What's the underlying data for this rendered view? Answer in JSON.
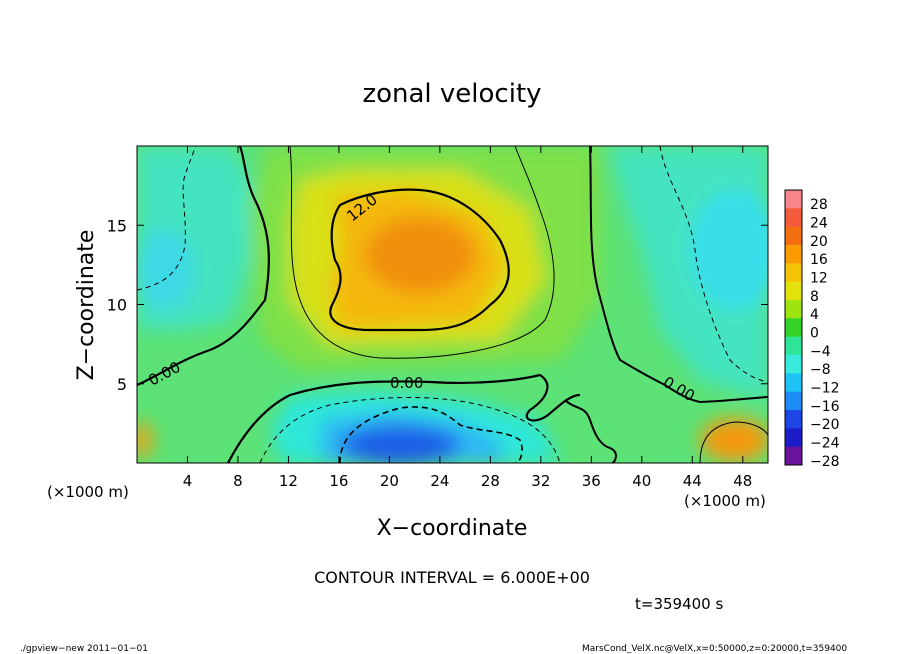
{
  "chart_data": {
    "type": "heatmap",
    "title": "zonal velocity",
    "xlabel": "X−coordinate",
    "ylabel": "Z−coordinate",
    "x_unit": "(×1000 m)",
    "y_unit": "(×1000 m)",
    "xlim": [
      0,
      50
    ],
    "ylim": [
      0,
      20
    ],
    "x_ticks": [
      "4",
      "8",
      "12",
      "16",
      "20",
      "24",
      "28",
      "32",
      "36",
      "40",
      "44",
      "48"
    ],
    "x_tick_values": [
      4,
      8,
      12,
      16,
      20,
      24,
      28,
      32,
      36,
      40,
      44,
      48
    ],
    "y_ticks": [
      "5",
      "10",
      "15"
    ],
    "y_tick_values": [
      5,
      10,
      15
    ],
    "colorbar": {
      "labels": [
        "28",
        "24",
        "20",
        "16",
        "12",
        "8",
        "4",
        "0",
        "−4",
        "−8",
        "−12",
        "−16",
        "−20",
        "−24",
        "−28"
      ],
      "values": [
        28,
        24,
        20,
        16,
        12,
        8,
        4,
        0,
        -4,
        -8,
        -12,
        -16,
        -20,
        -24,
        -28
      ],
      "colors": [
        "#f7878c",
        "#f45a3c",
        "#f37010",
        "#fa9a04",
        "#f4c406",
        "#e4e20c",
        "#9ee40e",
        "#33d32a",
        "#2ee59a",
        "#37eadc",
        "#1ec3f5",
        "#1b8cf4",
        "#1e46e6",
        "#1c1cc8",
        "#6a149e"
      ]
    },
    "contour_labels": [
      "12.0",
      "0.00",
      "0.00",
      "0.00"
    ],
    "contour_interval": "CONTOUR INTERVAL = 6.000E+00",
    "time_label": "t=359400 s",
    "features": [
      {
        "kind": "max",
        "x": 22,
        "z": 13.5,
        "value": 17
      },
      {
        "kind": "min",
        "x": 22,
        "z": 1,
        "value": -20
      }
    ]
  },
  "footer": {
    "left": "./gpview−new  2011−01−01",
    "right": "MarsCond_VelX.nc@VelX,x=0:50000,z=0:20000,t=359400"
  }
}
